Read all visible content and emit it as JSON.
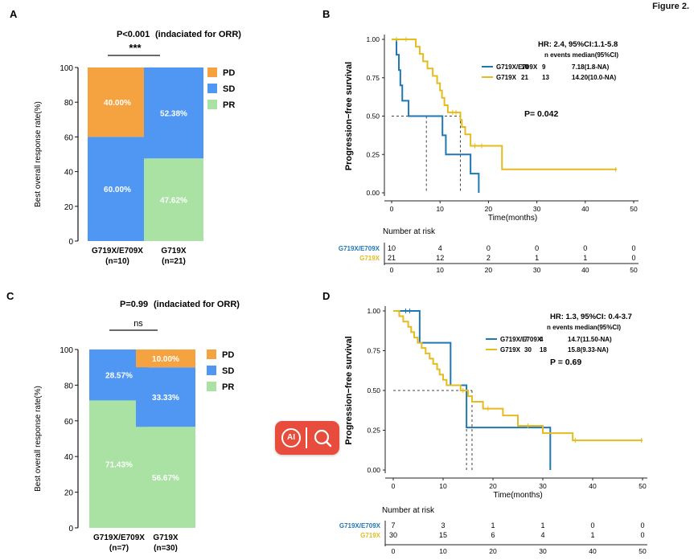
{
  "figure_label": "Figure 2.",
  "panels": {
    "A": {
      "letter": "A",
      "p_value": "P<0.001",
      "note": "(indaciated for ORR)",
      "sig": "***"
    },
    "B": {
      "letter": "B"
    },
    "C": {
      "letter": "C",
      "p_value": "P=0.99",
      "note": "(indaciated for ORR)",
      "sig": "ns"
    },
    "D": {
      "letter": "D"
    }
  },
  "badge": {
    "label": "AI",
    "icon": "search-icon",
    "color": "#e84c3d"
  },
  "colors": {
    "PD": "#f4a340",
    "SD": "#4f97f3",
    "PR": "#a9e2a2",
    "group1": "#1f77b4",
    "group2": "#e6bb1e"
  },
  "chart_data": [
    {
      "panel": "A",
      "type": "bar",
      "stacked": true,
      "ylabel": "Best overall response rate(%)",
      "ylim": [
        0,
        100
      ],
      "yticks": [
        0,
        20,
        40,
        60,
        80,
        100
      ],
      "categories": [
        [
          "G719X/E709X",
          "(n=10)"
        ],
        [
          "G719X",
          "(n=21)"
        ]
      ],
      "series": [
        {
          "name": "PR",
          "values": [
            0,
            47.62
          ],
          "labels": [
            "",
            "47.62%"
          ]
        },
        {
          "name": "SD",
          "values": [
            60.0,
            52.38
          ],
          "labels": [
            "60.00%",
            "52.38%"
          ]
        },
        {
          "name": "PD",
          "values": [
            40.0,
            0
          ],
          "labels": [
            "40.00%",
            ""
          ]
        }
      ],
      "legend": [
        "PD",
        "SD",
        "PR"
      ],
      "legend_position": "right"
    },
    {
      "panel": "B",
      "type": "line",
      "subtype": "kaplan-meier",
      "ylabel": "Progression−free survival",
      "xlabel": "Time(months)",
      "xlim": [
        0,
        50
      ],
      "ylim": [
        0,
        1
      ],
      "xticks": [
        0,
        10,
        20,
        30,
        40,
        50
      ],
      "yticks": [
        "0.00",
        "0.25",
        "0.50",
        "0.75",
        "1.00"
      ],
      "hr_text": "HR: 2.4, 95%CI:1.1-5.8",
      "p_text": "P= 0.042",
      "table_header": "n   events  median(95%CI)",
      "series": [
        {
          "name": "G719X/E709X",
          "n": "10",
          "events": "9",
          "median": "7.18(1.8-NA)",
          "steps": [
            [
              0,
              1.0
            ],
            [
              1.0,
              0.9
            ],
            [
              1.5,
              0.8
            ],
            [
              1.8,
              0.7
            ],
            [
              2.2,
              0.6
            ],
            [
              3.5,
              0.5
            ],
            [
              10.5,
              0.375
            ],
            [
              11.2,
              0.25
            ],
            [
              16.3,
              0.125
            ],
            [
              18.0,
              0.0
            ]
          ],
          "censors": [],
          "median_x": 7.18
        },
        {
          "name": "G719X",
          "n": "21",
          "events": "13",
          "median": "14.20(10.0-NA)",
          "steps": [
            [
              0,
              1.0
            ],
            [
              5.0,
              0.952
            ],
            [
              5.8,
              0.905
            ],
            [
              6.5,
              0.857
            ],
            [
              7.4,
              0.81
            ],
            [
              8.5,
              0.762
            ],
            [
              9.4,
              0.714
            ],
            [
              10.0,
              0.667
            ],
            [
              10.4,
              0.619
            ],
            [
              10.9,
              0.571
            ],
            [
              11.6,
              0.524
            ],
            [
              14.2,
              0.476
            ],
            [
              14.5,
              0.429
            ],
            [
              15.2,
              0.381
            ],
            [
              16.3,
              0.306
            ],
            [
              22.8,
              0.153
            ],
            [
              46.5,
              0.153
            ]
          ],
          "censors": [
            [
              1.0,
              1.0
            ],
            [
              3.0,
              1.0
            ],
            [
              12.6,
              0.524
            ],
            [
              13.3,
              0.524
            ],
            [
              17.2,
              0.306
            ],
            [
              18.6,
              0.306
            ],
            [
              46.3,
              0.153
            ]
          ],
          "median_x": 14.2
        }
      ],
      "risk_table": {
        "title": "Number at risk",
        "times": [
          0,
          10,
          20,
          30,
          40,
          50
        ],
        "rows": [
          {
            "name": "G719X/E709X",
            "values": [
              "10",
              "4",
              "0",
              "0",
              "0",
              "0"
            ]
          },
          {
            "name": "G719X",
            "values": [
              "21",
              "12",
              "2",
              "1",
              "1",
              "0"
            ]
          }
        ]
      }
    },
    {
      "panel": "C",
      "type": "bar",
      "stacked": true,
      "ylabel": "Best overall response rate(%)",
      "ylim": [
        0,
        100
      ],
      "yticks": [
        0,
        20,
        40,
        60,
        80,
        100
      ],
      "categories": [
        [
          "G719X/E709X",
          "(n=7)"
        ],
        [
          "G719X",
          "(n=30)"
        ]
      ],
      "series": [
        {
          "name": "PR",
          "values": [
            71.43,
            56.67
          ],
          "labels": [
            "71.43%",
            "56.67%"
          ]
        },
        {
          "name": "SD",
          "values": [
            28.57,
            33.33
          ],
          "labels": [
            "28.57%",
            "33.33%"
          ]
        },
        {
          "name": "PD",
          "values": [
            0,
            10.0
          ],
          "labels": [
            "",
            "10.00%"
          ]
        }
      ],
      "legend": [
        "PD",
        "SD",
        "PR"
      ],
      "legend_position": "right"
    },
    {
      "panel": "D",
      "type": "line",
      "subtype": "kaplan-meier",
      "ylabel": "Progression−free survival",
      "xlabel": "Time(months)",
      "xlim": [
        0,
        50
      ],
      "ylim": [
        0,
        1
      ],
      "xticks": [
        0,
        10,
        20,
        30,
        40,
        50
      ],
      "yticks": [
        "0.00",
        "0.25",
        "0.50",
        "0.75",
        "1.00"
      ],
      "hr_text": "HR: 1.3, 95%CI: 0.4-3.7",
      "p_text": "P = 0.69",
      "table_header": "n events median(95%CI)",
      "series": [
        {
          "name": "G719X/E709X",
          "n": "7",
          "events": "4",
          "median": "14.7(11.50-NA)",
          "steps": [
            [
              0,
              1.0
            ],
            [
              5.3,
              0.8
            ],
            [
              11.5,
              0.533
            ],
            [
              14.7,
              0.267
            ],
            [
              31.5,
              0.0
            ]
          ],
          "censors": [
            [
              2.5,
              1.0
            ],
            [
              3.3,
              1.0
            ]
          ],
          "median_x": 14.7
        },
        {
          "name": "G719X",
          "n": "30",
          "events": "18",
          "median": "15.8(9.33-NA)",
          "steps": [
            [
              0,
              1.0
            ],
            [
              1.2,
              0.967
            ],
            [
              2.0,
              0.933
            ],
            [
              3.0,
              0.9
            ],
            [
              3.6,
              0.867
            ],
            [
              4.2,
              0.833
            ],
            [
              4.9,
              0.8
            ],
            [
              5.7,
              0.767
            ],
            [
              6.5,
              0.733
            ],
            [
              7.3,
              0.7
            ],
            [
              8.0,
              0.667
            ],
            [
              8.8,
              0.633
            ],
            [
              9.3,
              0.6
            ],
            [
              10.0,
              0.567
            ],
            [
              10.7,
              0.533
            ],
            [
              13.5,
              0.5
            ],
            [
              15.0,
              0.464
            ],
            [
              15.8,
              0.429
            ],
            [
              18.0,
              0.386
            ],
            [
              22.0,
              0.343
            ],
            [
              25.0,
              0.278
            ],
            [
              30.0,
              0.232
            ],
            [
              36.0,
              0.186
            ],
            [
              50.0,
              0.186
            ]
          ],
          "censors": [
            [
              14.0,
              0.5
            ],
            [
              19.0,
              0.386
            ],
            [
              27.0,
              0.278
            ],
            [
              36.5,
              0.186
            ],
            [
              49.8,
              0.186
            ]
          ],
          "median_x": 15.8
        }
      ],
      "risk_table": {
        "title": "Number at risk",
        "times": [
          0,
          10,
          20,
          30,
          40,
          50
        ],
        "rows": [
          {
            "name": "G719X/E709X",
            "values": [
              "7",
              "3",
              "1",
              "1",
              "0",
              "0"
            ]
          },
          {
            "name": "G719X",
            "values": [
              "30",
              "15",
              "6",
              "4",
              "1",
              "0"
            ]
          }
        ]
      }
    }
  ]
}
